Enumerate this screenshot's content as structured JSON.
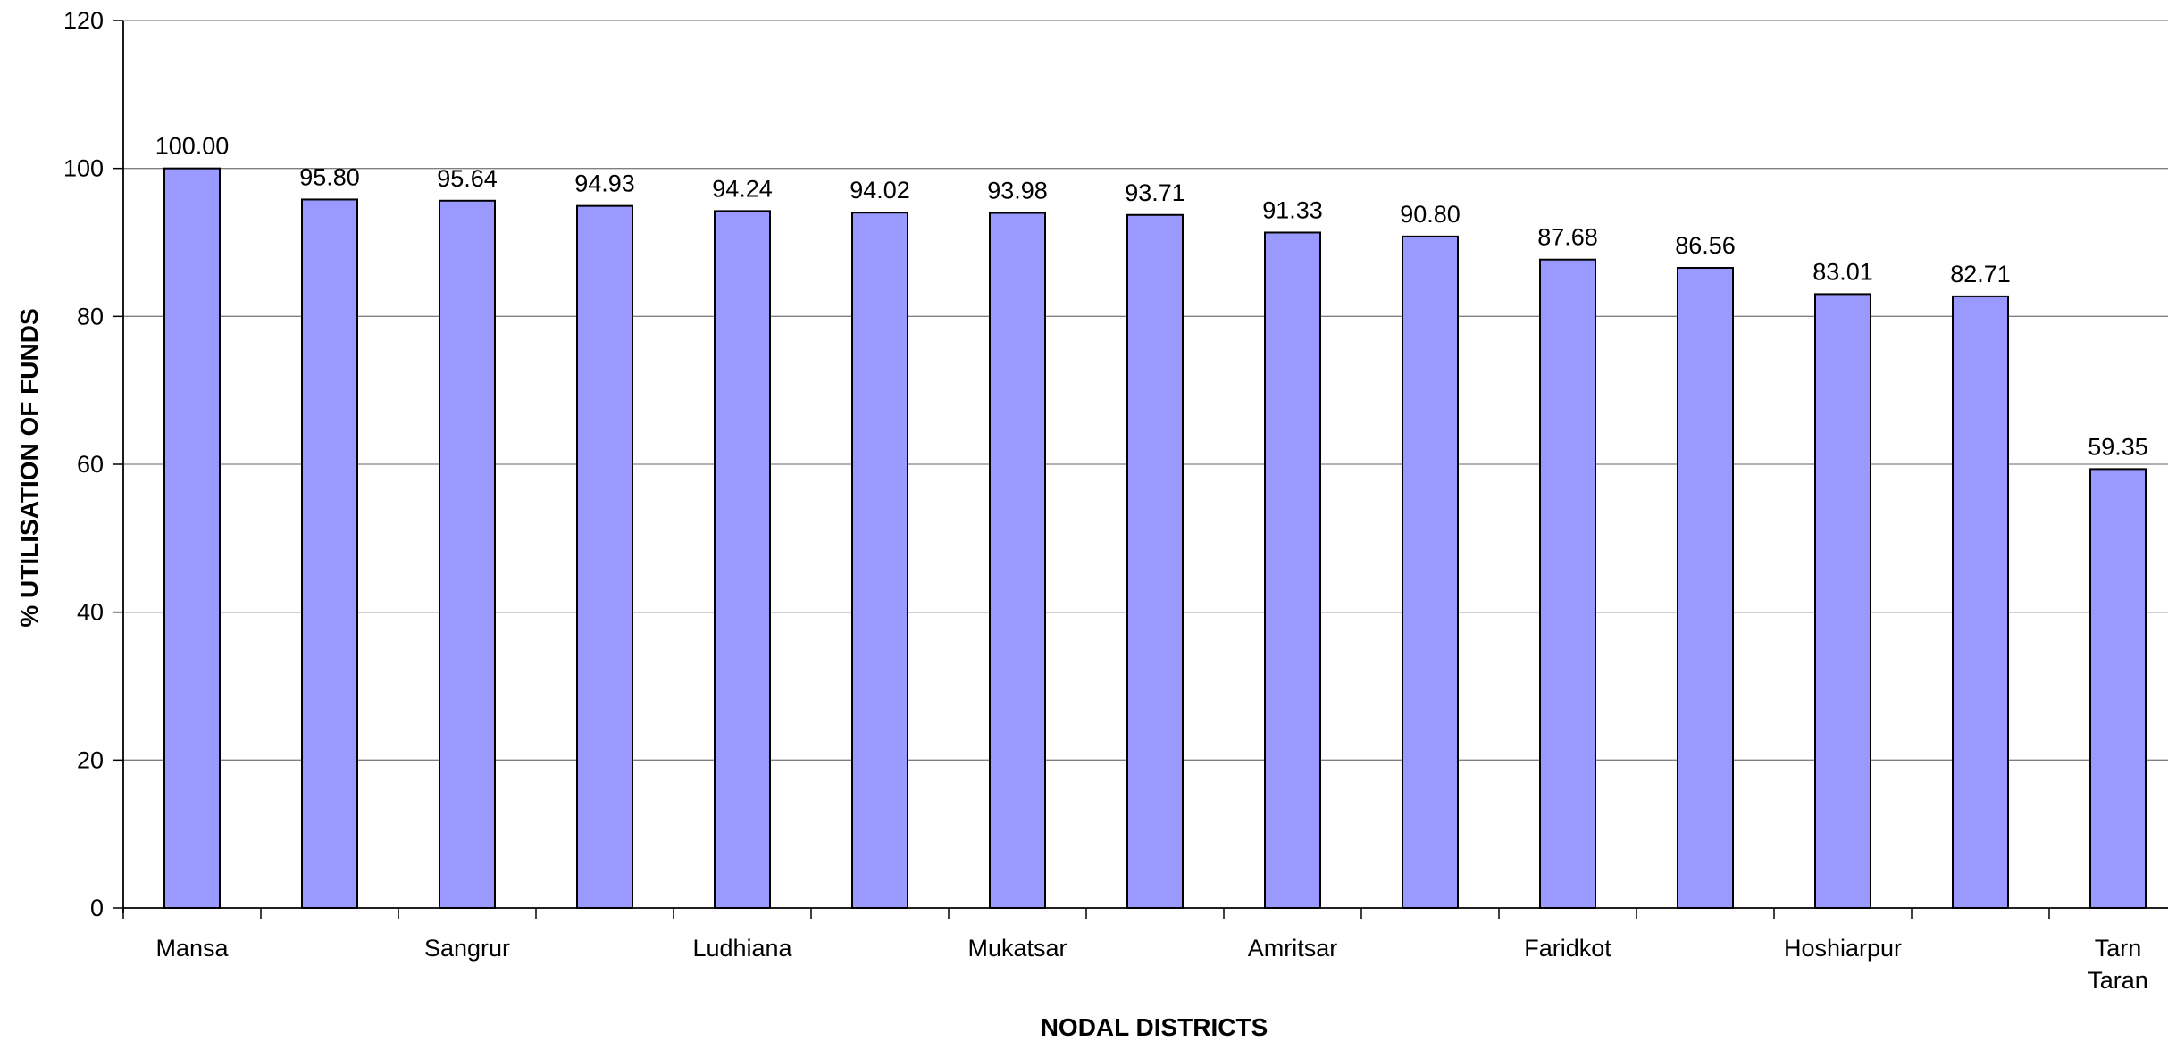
{
  "chart_data": {
    "type": "bar",
    "title": "",
    "xlabel": "NODAL DISTRICTS",
    "ylabel": "% UTILISATION OF FUNDS",
    "ylim": [
      0,
      120
    ],
    "yticks": [
      0,
      20,
      40,
      60,
      80,
      100,
      120
    ],
    "grid": true,
    "bar_color": "#9999ff",
    "categories": [
      "Mansa",
      "",
      "Sangrur",
      "",
      "Ludhiana",
      "",
      "Mukatsar",
      "",
      "Amritsar",
      "",
      "Faridkot",
      "",
      "Hoshiarpur",
      "",
      "Tarn Taran"
    ],
    "values": [
      100.0,
      95.8,
      95.64,
      94.93,
      94.24,
      94.02,
      93.98,
      93.71,
      91.33,
      90.8,
      87.68,
      86.56,
      83.01,
      82.71,
      59.35
    ],
    "value_labels": [
      "100.00",
      "95.80",
      "95.64",
      "94.93",
      "94.24",
      "94.02",
      "93.98",
      "93.71",
      "91.33",
      "90.80",
      "87.68",
      "86.56",
      "83.01",
      "82.71",
      "59.35"
    ]
  }
}
